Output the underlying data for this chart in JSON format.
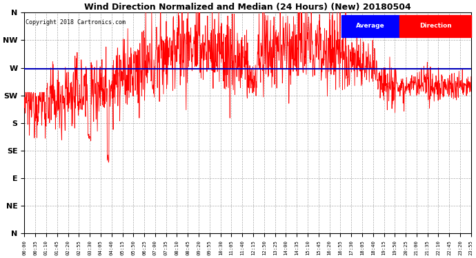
{
  "title": "Wind Direction Normalized and Median (24 Hours) (New) 20180504",
  "copyright": "Copyright 2018 Cartronics.com",
  "background_color": "#ffffff",
  "plot_bg_color": "#ffffff",
  "grid_color": "#aaaaaa",
  "line_color_red": "#ff0000",
  "average_line_color": "#0000bb",
  "y_labels": [
    "N",
    "NW",
    "W",
    "SW",
    "S",
    "SE",
    "E",
    "NE",
    "N"
  ],
  "y_ticks": [
    360,
    315,
    270,
    225,
    180,
    135,
    90,
    45,
    0
  ],
  "ylim": [
    0,
    360
  ],
  "legend_blue_label": "Average",
  "legend_red_label": "Direction",
  "average_value": 268,
  "x_tick_labels": [
    "00:00",
    "00:35",
    "01:10",
    "01:45",
    "02:20",
    "02:55",
    "03:30",
    "04:05",
    "04:40",
    "05:15",
    "05:50",
    "06:25",
    "07:00",
    "07:35",
    "08:10",
    "08:45",
    "09:20",
    "09:55",
    "10:30",
    "11:05",
    "11:40",
    "12:15",
    "12:50",
    "13:25",
    "14:00",
    "14:35",
    "15:10",
    "15:45",
    "16:20",
    "16:55",
    "17:30",
    "18:05",
    "18:40",
    "19:15",
    "19:50",
    "20:25",
    "21:00",
    "21:35",
    "22:10",
    "22:45",
    "23:20",
    "23:55"
  ],
  "num_points": 1440
}
